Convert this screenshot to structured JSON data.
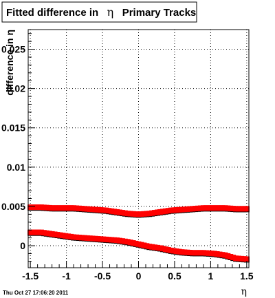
{
  "title": {
    "prefix": "Fitted difference in",
    "eta": "η",
    "suffix": "Primary Tracks"
  },
  "timestamp": "Thu Oct 27 17:06:20 2011",
  "chart_data": {
    "type": "scatter",
    "title": "Fitted difference in η Primary Tracks",
    "xlabel": "η",
    "ylabel": "difference in η",
    "xlim": [
      -1.53,
      1.53
    ],
    "ylim": [
      -0.0028,
      0.0275
    ],
    "grid": true,
    "x_ticks": [
      -1.5,
      -1,
      -0.5,
      0,
      0.5,
      1,
      1.5
    ],
    "x_tick_labels": [
      "-1.5",
      "-1",
      "-0.5",
      "0",
      "0.5",
      "1",
      "1.5"
    ],
    "y_ticks": [
      0,
      0.005,
      0.01,
      0.015,
      0.02,
      0.025
    ],
    "y_tick_labels": [
      "0",
      "0.005",
      "0.01",
      "0.015",
      "0.02",
      "0.025"
    ],
    "colors": {
      "marker_red": "#ff0000",
      "marker_black": "#000000",
      "grid": "#000000",
      "frame": "#000000"
    },
    "series": [
      {
        "color": "#ff0000",
        "shadow_color": "#000000",
        "points": [
          [
            -1.5,
            0.0049
          ],
          [
            -1.35,
            0.0049
          ],
          [
            -1.2,
            0.0048
          ],
          [
            -1.05,
            0.0048
          ],
          [
            -0.9,
            0.0048
          ],
          [
            -0.75,
            0.0047
          ],
          [
            -0.6,
            0.0046
          ],
          [
            -0.45,
            0.0045
          ],
          [
            -0.3,
            0.0043
          ],
          [
            -0.15,
            0.0041
          ],
          [
            0.0,
            0.004
          ],
          [
            0.15,
            0.0041
          ],
          [
            0.3,
            0.0043
          ],
          [
            0.45,
            0.0045
          ],
          [
            0.6,
            0.0046
          ],
          [
            0.75,
            0.0047
          ],
          [
            0.9,
            0.0048
          ],
          [
            1.05,
            0.0048
          ],
          [
            1.2,
            0.0048
          ],
          [
            1.35,
            0.0047
          ],
          [
            1.5,
            0.0047
          ]
        ]
      },
      {
        "color": "#ff0000",
        "shadow_color": "#000000",
        "points": [
          [
            -1.5,
            0.0017
          ],
          [
            -1.35,
            0.0017
          ],
          [
            -1.2,
            0.0015
          ],
          [
            -1.05,
            0.0013
          ],
          [
            -0.9,
            0.0011
          ],
          [
            -0.75,
            0.001
          ],
          [
            -0.6,
            0.0009
          ],
          [
            -0.45,
            0.0008
          ],
          [
            -0.3,
            0.0007
          ],
          [
            -0.15,
            0.0005
          ],
          [
            0.0,
            0.0002
          ],
          [
            0.15,
            -0.0001
          ],
          [
            0.3,
            -0.0003
          ],
          [
            0.45,
            -0.0006
          ],
          [
            0.6,
            -0.0008
          ],
          [
            0.75,
            -0.0009
          ],
          [
            0.9,
            -0.0009
          ],
          [
            1.05,
            -0.001
          ],
          [
            1.2,
            -0.0012
          ],
          [
            1.35,
            -0.0016
          ],
          [
            1.5,
            -0.0017
          ]
        ]
      }
    ]
  }
}
